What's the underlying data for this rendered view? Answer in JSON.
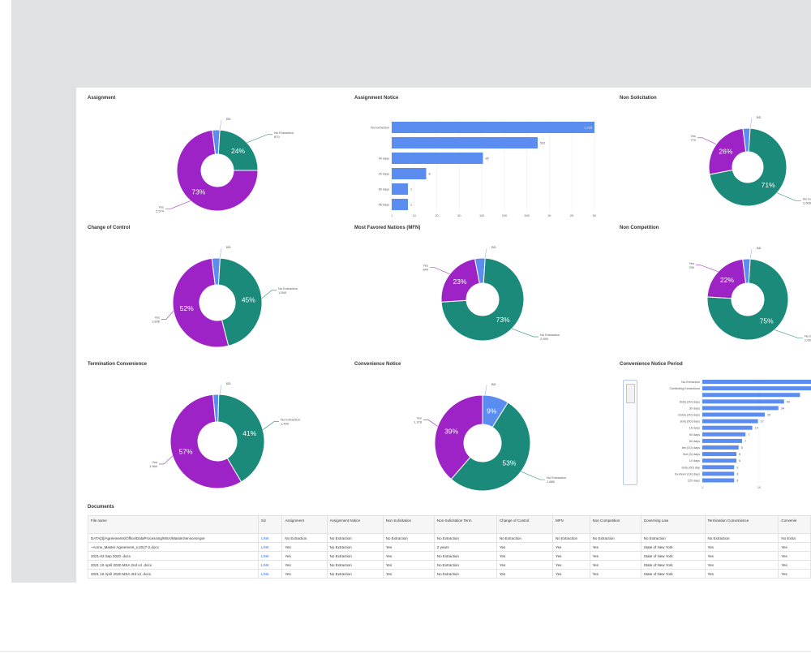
{
  "colors": {
    "purple": "#9d23c6",
    "teal": "#1b8a7a",
    "blue": "#5b8df0"
  },
  "panels": {
    "assignment": {
      "title": "Assignment",
      "slices": [
        {
          "value": 3,
          "color": "#5b8df0"
        },
        {
          "value": 24,
          "color": "#1b8a7a"
        },
        {
          "value": 73,
          "color": "#9d23c6"
        }
      ],
      "labels": [
        "24%",
        "73%"
      ],
      "callouts": [
        {
          "name": "BD",
          "count": ""
        },
        {
          "name": "No Extraction",
          "count": "870"
        },
        {
          "name": "Yes",
          "count": "2,574"
        }
      ]
    },
    "assignment_notice": {
      "title": "Assignment Notice",
      "chart_data": {
        "type": "bar",
        "orientation": "horizontal",
        "categories": [
          "No Extraction",
          "",
          "90 days",
          "15 days",
          "60 days",
          "45 days"
        ],
        "values": [
          1.0,
          0.72,
          0.45,
          0.17,
          0.08,
          0.08
        ],
        "value_labels": [
          "1,715",
          "532",
          "85",
          "8",
          "1",
          "1"
        ]
      },
      "axis_ticks": [
        "1",
        "10",
        "20",
        "50",
        "100",
        "200",
        "500",
        "1K",
        "2K",
        "5K"
      ]
    },
    "non_solicitation": {
      "title": "Non Solicitation",
      "slices": [
        {
          "value": 3,
          "color": "#5b8df0"
        },
        {
          "value": 71,
          "color": "#1b8a7a"
        },
        {
          "value": 26,
          "color": "#9d23c6"
        }
      ],
      "labels": [
        "71%",
        "26%"
      ],
      "callouts": [
        {
          "name": "BD",
          "count": ""
        },
        {
          "name": "No Extraction",
          "count": "2,506"
        },
        {
          "name": "Yes",
          "count": "770"
        }
      ]
    },
    "change_of_control": {
      "title": "Change of Control",
      "slices": [
        {
          "value": 3,
          "color": "#5b8df0"
        },
        {
          "value": 45,
          "color": "#1b8a7a"
        },
        {
          "value": 52,
          "color": "#9d23c6"
        }
      ],
      "labels": [
        "45%",
        "52%"
      ],
      "callouts": [
        {
          "name": "BD",
          "count": ""
        },
        {
          "name": "No Extraction",
          "count": "1,590"
        },
        {
          "name": "Yes",
          "count": "1,836"
        }
      ]
    },
    "mfn": {
      "title": "Most Favored Nations (MFN)",
      "slices": [
        {
          "value": 4,
          "color": "#5b8df0"
        },
        {
          "value": 73,
          "color": "#1b8a7a"
        },
        {
          "value": 23,
          "color": "#9d23c6"
        }
      ],
      "labels": [
        "73%",
        "23%"
      ],
      "callouts": [
        {
          "name": "BD",
          "count": ""
        },
        {
          "name": "No Extraction",
          "count": "2,590"
        },
        {
          "name": "Yes",
          "count": "840"
        }
      ]
    },
    "non_competition": {
      "title": "Non Competition",
      "slices": [
        {
          "value": 3,
          "color": "#5b8df0"
        },
        {
          "value": 75,
          "color": "#1b8a7a"
        },
        {
          "value": 22,
          "color": "#9d23c6"
        }
      ],
      "labels": [
        "75%",
        "22%"
      ],
      "callouts": [
        {
          "name": "BD",
          "count": ""
        },
        {
          "name": "No Extraction",
          "count": "2,650"
        },
        {
          "name": "Yes",
          "count": "780"
        }
      ]
    },
    "termination_convenience": {
      "title": "Termination Convenience",
      "slices": [
        {
          "value": 2,
          "color": "#5b8df0"
        },
        {
          "value": 41,
          "color": "#1b8a7a"
        },
        {
          "value": 57,
          "color": "#9d23c6"
        }
      ],
      "labels": [
        "41%",
        "57%"
      ],
      "callouts": [
        {
          "name": "BD",
          "count": ""
        },
        {
          "name": "No Extraction",
          "count": "1,440"
        },
        {
          "name": "Yes",
          "count": "1,960"
        }
      ]
    },
    "convenience_notice": {
      "title": "Convenience Notice",
      "slices": [
        {
          "value": 9,
          "color": "#5b8df0"
        },
        {
          "value": 53,
          "color": "#1b8a7a"
        },
        {
          "value": 39,
          "color": "#9d23c6"
        }
      ],
      "labels": [
        "9%",
        "53%",
        "39%"
      ],
      "callouts": [
        {
          "name": "BD",
          "count": ""
        },
        {
          "name": "No Extraction",
          "count": "1,880"
        },
        {
          "name": "Yes",
          "count": "1,378"
        }
      ]
    },
    "convenience_notice_period": {
      "title": "Convenience Notice Period",
      "chart_data": {
        "type": "bar",
        "orientation": "horizontal",
        "categories": [
          "No Extraction",
          "Conflicting Extractions",
          "",
          "thirty (30) days",
          "30 days",
          "ninety (90) days",
          "sixty (60) days",
          "15 days",
          "90 days",
          "60 days",
          "ten (10) days",
          "five (5) days",
          "14 days",
          "sixty (60) day",
          "fourteen (14) days",
          "120 days"
        ],
        "values": [
          1.0,
          0.97,
          0.86,
          0.72,
          0.67,
          0.55,
          0.49,
          0.44,
          0.38,
          0.35,
          0.32,
          0.3,
          0.3,
          0.28,
          0.28,
          0.28
        ],
        "value_labels": [
          "",
          "",
          "",
          "40",
          "34",
          "20",
          "17",
          "14",
          "7",
          "7",
          "5",
          "5",
          "5",
          "3",
          "3",
          "3"
        ]
      },
      "axis_ticks": [
        "1",
        "10",
        "100"
      ]
    }
  },
  "documents": {
    "title": "Documents",
    "columns": [
      "File name",
      "Siz",
      "Assignment",
      "Assignment Notice",
      "Non Solicitation",
      "Non-Solicitation Term",
      "Change of Control",
      "MFN",
      "Non Competition",
      "Governing Law",
      "Termination Convenience",
      "Convenie"
    ],
    "rows": [
      [
        "DATA[3]/Agreements/Office/DataProcessing/MSA/MasterServicesAgre",
        "LINK",
        "No Extraction",
        "No Extraction",
        "No Extraction",
        "No Extraction",
        "No Extraction",
        "No Extraction",
        "No Extraction",
        "No Extraction",
        "No Extraction",
        "No Extra"
      ],
      [
        "~Acme_Master Agreement_v.2017-2.docx",
        "LINK",
        "Yes",
        "No Extraction",
        "Yes",
        "2 years",
        "Yes",
        "Yes",
        "Yes",
        "State of New York",
        "Yes",
        "Yes"
      ],
      [
        "2021-03 Sep 2020 .docx",
        "LINK",
        "Yes",
        "No Extraction",
        "Yes",
        "No Extraction",
        "Yes",
        "Yes",
        "Yes",
        "State of New York",
        "Yes",
        "Yes"
      ],
      [
        "2021 10 April 2020 MSA 2nd v4 .docx",
        "LINK",
        "Yes",
        "No Extraction",
        "Yes",
        "No Extraction",
        "Yes",
        "Yes",
        "Yes",
        "State of New York",
        "Yes",
        "Yes"
      ],
      [
        "2021 10 April 2020 MSA 3rd v4 .docx",
        "LINK",
        "Yes",
        "No Extraction",
        "Yes",
        "No Extraction",
        "Yes",
        "Yes",
        "Yes",
        "State of New York",
        "Yes",
        "Yes"
      ]
    ]
  }
}
